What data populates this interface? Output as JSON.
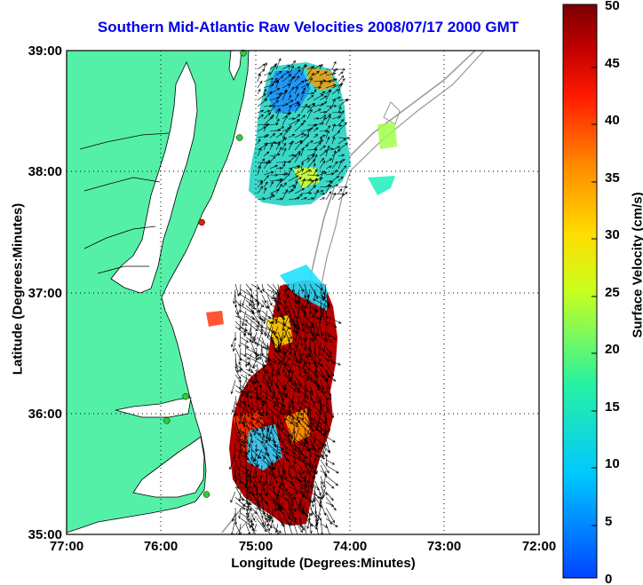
{
  "title": "Southern Mid-Atlantic Raw Velocities 2008/07/17 2000 GMT",
  "xlabel": "Longitude (Degrees:Minutes)",
  "ylabel": "Latitude (Degrees:Minutes)",
  "x_ticks": [
    "77:00",
    "76:00",
    "75:00",
    "74:00",
    "73:00",
    "72:00"
  ],
  "y_ticks": [
    "39:00",
    "38:00",
    "37:00",
    "36:00",
    "35:00"
  ],
  "colorbar": {
    "label": "Surface Velocity (cm/s)",
    "ticks": [
      "50",
      "45",
      "40",
      "35",
      "30",
      "25",
      "20",
      "15",
      "10",
      "5",
      "0"
    ],
    "range": [
      0,
      50
    ]
  },
  "colors": {
    "land": "#55f0a8",
    "water": "#ffffff",
    "title": "#0000ee",
    "bathymetry": "#999999",
    "vector": "#000000"
  },
  "map": {
    "lon_range": [
      -77,
      -72
    ],
    "lat_range": [
      35,
      39
    ],
    "grid": "dotted",
    "stations": [
      {
        "lon": -75.13,
        "lat": 38.98,
        "color": "#33cc33"
      },
      {
        "lon": -75.17,
        "lat": 38.28,
        "color": "#33cc33"
      },
      {
        "lon": -75.57,
        "lat": 37.58,
        "color": "#dd2200"
      },
      {
        "lon": -75.74,
        "lat": 36.14,
        "color": "#33cc33"
      },
      {
        "lon": -75.94,
        "lat": 35.94,
        "color": "#33cc33"
      },
      {
        "lon": -75.52,
        "lat": 35.33,
        "color": "#33cc33"
      }
    ]
  }
}
